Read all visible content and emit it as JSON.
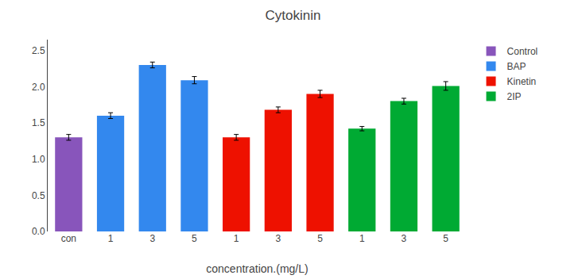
{
  "chart_data": {
    "type": "bar",
    "title": "Cytokinin",
    "xlabel": "concentration.(mg/L)",
    "categories": [
      "con",
      "1",
      "3",
      "5",
      "1",
      "3",
      "5",
      "1",
      "3",
      "5"
    ],
    "series": [
      {
        "name": "Control",
        "color": "#8855BB",
        "values": [
          1.3,
          null,
          null,
          null,
          null,
          null,
          null,
          null,
          null,
          null
        ],
        "errors": [
          0.04,
          null,
          null,
          null,
          null,
          null,
          null,
          null,
          null,
          null
        ]
      },
      {
        "name": "BAP",
        "color": "#3388EE",
        "values": [
          null,
          1.6,
          2.3,
          2.09,
          null,
          null,
          null,
          null,
          null,
          null
        ],
        "errors": [
          null,
          0.04,
          0.04,
          0.05,
          null,
          null,
          null,
          null,
          null,
          null
        ]
      },
      {
        "name": "Kinetin",
        "color": "#EE1100",
        "values": [
          null,
          null,
          null,
          null,
          1.3,
          1.68,
          1.9,
          null,
          null,
          null
        ],
        "errors": [
          null,
          null,
          null,
          null,
          0.04,
          0.04,
          0.05,
          null,
          null,
          null
        ]
      },
      {
        "name": "2IP",
        "color": "#00AA33",
        "values": [
          null,
          null,
          null,
          null,
          null,
          null,
          null,
          1.42,
          1.8,
          2.01
        ],
        "errors": [
          null,
          null,
          null,
          null,
          null,
          null,
          null,
          0.03,
          0.04,
          0.06
        ]
      }
    ],
    "ylim": [
      0.0,
      2.65
    ],
    "yticks": [
      {
        "value": 0.0,
        "label": "0.0"
      },
      0.5,
      {
        "value": 1.0,
        "label": "1.0"
      },
      1.5,
      {
        "value": 2.0,
        "label": "2.0"
      },
      2.5
    ],
    "grid": false,
    "legend": "right"
  }
}
